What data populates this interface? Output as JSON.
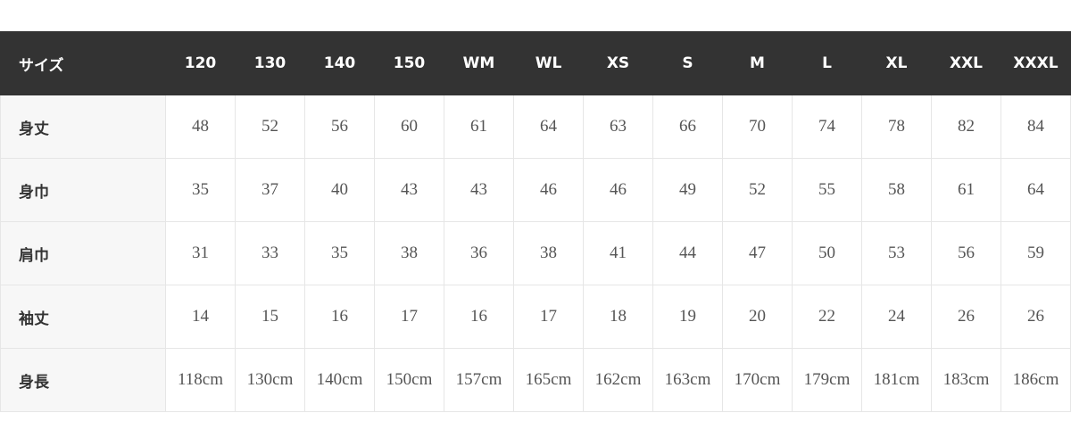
{
  "table": {
    "header": [
      "サイズ",
      "120",
      "130",
      "140",
      "150",
      "WM",
      "WL",
      "XS",
      "S",
      "M",
      "L",
      "XL",
      "XXL",
      "XXXL"
    ],
    "rows": [
      [
        "身丈",
        "48",
        "52",
        "56",
        "60",
        "61",
        "64",
        "63",
        "66",
        "70",
        "74",
        "78",
        "82",
        "84"
      ],
      [
        "身巾",
        "35",
        "37",
        "40",
        "43",
        "43",
        "46",
        "46",
        "49",
        "52",
        "55",
        "58",
        "61",
        "64"
      ],
      [
        "肩巾",
        "31",
        "33",
        "35",
        "38",
        "36",
        "38",
        "41",
        "44",
        "47",
        "50",
        "53",
        "56",
        "59"
      ],
      [
        "袖丈",
        "14",
        "15",
        "16",
        "17",
        "16",
        "17",
        "18",
        "19",
        "20",
        "22",
        "24",
        "26",
        "26"
      ],
      [
        "身長",
        "118cm",
        "130cm",
        "140cm",
        "150cm",
        "157cm",
        "165cm",
        "162cm",
        "163cm",
        "170cm",
        "179cm",
        "181cm",
        "183cm",
        "186cm"
      ]
    ]
  }
}
